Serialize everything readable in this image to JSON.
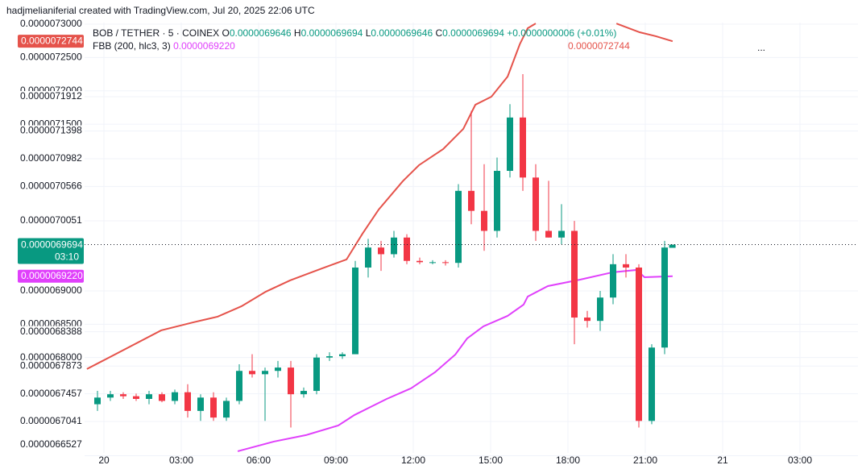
{
  "watermark": "hadjmelianiferial created with TradingView.com, Jul 20, 2025 22:06 UTC",
  "legend": {
    "symbol": "BOB / TETHER · 5 · COINEX",
    "open": {
      "label": "O",
      "value": "0.0000069646"
    },
    "high": {
      "label": "H",
      "value": "0.0000069694"
    },
    "low": {
      "label": "L",
      "value": "0.0000069646"
    },
    "close": {
      "label": "C",
      "value": "0.0000069694"
    },
    "change": "+0.0000000006 (+0.01%)",
    "indicator": "FBB (200, hlc3, 3)",
    "indicator_lower": "0.0000069220",
    "indicator_upper": "0.0000072744",
    "more": "..."
  },
  "price_tags": {
    "upper": "0.0000072744",
    "last": "0.0000069694",
    "countdown": "03:10",
    "lower": "0.0000069220"
  },
  "chart_data": {
    "type": "candlestick",
    "ylim": [
      6.657e-06,
      7.3024e-06
    ],
    "yticks": [
      {
        "value": 7.3e-06,
        "label": "0.0000073000"
      },
      {
        "value": 7.25e-06,
        "label": "0.0000072500"
      },
      {
        "value": 7.2e-06,
        "label": "0.0000072000"
      },
      {
        "value": 7.1912e-06,
        "label": "0.0000071912"
      },
      {
        "value": 7.15e-06,
        "label": "0.0000071500"
      },
      {
        "value": 7.1398e-06,
        "label": "0.0000071398"
      },
      {
        "value": 7.0982e-06,
        "label": "0.0000070982"
      },
      {
        "value": 7.0566e-06,
        "label": "0.0000070566"
      },
      {
        "value": 7.0051e-06,
        "label": "0.0000070051"
      },
      {
        "value": 6.9e-06,
        "label": "0.0000069000"
      },
      {
        "value": 6.85e-06,
        "label": "0.0000068500"
      },
      {
        "value": 6.8388e-06,
        "label": "0.0000068388"
      },
      {
        "value": 6.8e-06,
        "label": "0.0000068000"
      },
      {
        "value": 6.7873e-06,
        "label": "0.0000067873"
      },
      {
        "value": 6.7457e-06,
        "label": "0.0000067457"
      },
      {
        "value": 6.7041e-06,
        "label": "0.0000067041"
      },
      {
        "value": 6.6527e-06,
        "label": "0.0000066527"
      }
    ],
    "xlim": [
      -0.75,
      29.25
    ],
    "xticks": [
      {
        "value": 0,
        "label": "20"
      },
      {
        "value": 3,
        "label": "03:00"
      },
      {
        "value": 6,
        "label": "06:00"
      },
      {
        "value": 9,
        "label": "09:00"
      },
      {
        "value": 12,
        "label": "12:00"
      },
      {
        "value": 15,
        "label": "15:00"
      },
      {
        "value": 18,
        "label": "18:00"
      },
      {
        "value": 21,
        "label": "21:00"
      },
      {
        "value": 24,
        "label": "21"
      },
      {
        "value": 27,
        "label": "03:00"
      }
    ],
    "grid": true,
    "last_price_line": true,
    "candles": {
      "up_color": "#089981",
      "down_color": "#f23645",
      "x": [
        -0.25,
        0.25,
        0.75,
        1.25,
        1.75,
        2.25,
        2.75,
        3.25,
        3.75,
        4.25,
        4.75,
        5.25,
        5.75,
        6.25,
        6.75,
        7.25,
        7.75,
        8.25,
        8.75,
        9.25,
        9.75,
        10.25,
        10.75,
        11.25,
        11.75,
        12.25,
        12.75,
        13.25,
        13.75,
        14.25,
        14.75,
        15.25,
        15.75,
        16.25,
        16.75,
        17.25,
        17.75,
        18.25,
        18.75,
        19.25,
        19.75,
        20.25,
        20.75,
        21.25,
        21.75,
        22.05
      ],
      "open": [
        6.73e-06,
        6.74e-06,
        6.745e-06,
        6.742e-06,
        6.738e-06,
        6.745e-06,
        6.735e-06,
        6.748e-06,
        6.72e-06,
        6.74e-06,
        6.71e-06,
        6.735e-06,
        6.78e-06,
        6.775e-06,
        6.78e-06,
        6.785e-06,
        6.745e-06,
        6.75e-06,
        6.8e-06,
        6.802e-06,
        6.805e-06,
        6.935e-06,
        6.965e-06,
        6.955e-06,
        6.98e-06,
        6.945e-06,
        6.943e-06,
        6.943e-06,
        6.942e-06,
        7.05e-06,
        7.02e-06,
        6.99e-06,
        7.08e-06,
        7.16e-06,
        7.07e-06,
        6.99e-06,
        6.98e-06,
        6.99e-06,
        6.86e-06,
        6.855e-06,
        6.89e-06,
        6.94e-06,
        6.935e-06,
        6.705e-06,
        6.815e-06,
        6.9646e-06
      ],
      "high": [
        6.75e-06,
        6.75e-06,
        6.748e-06,
        6.746e-06,
        6.75e-06,
        6.748e-06,
        6.752e-06,
        6.76e-06,
        6.745e-06,
        6.748e-06,
        6.74e-06,
        6.79e-06,
        6.805e-06,
        6.785e-06,
        6.795e-06,
        6.795e-06,
        6.755e-06,
        6.805e-06,
        6.808e-06,
        6.808e-06,
        6.945e-06,
        6.978e-06,
        6.975e-06,
        6.99e-06,
        6.985e-06,
        6.95e-06,
        6.946e-06,
        6.946e-06,
        7.06e-06,
        7.17e-06,
        7.09e-06,
        7.1e-06,
        7.18e-06,
        7.225e-06,
        7.09e-06,
        7.065e-06,
        7.03e-06,
        7.005e-06,
        6.87e-06,
        6.9e-06,
        6.955e-06,
        6.955e-06,
        6.94e-06,
        6.82e-06,
        6.975e-06,
        6.9694e-06
      ],
      "low": [
        6.72e-06,
        6.735e-06,
        6.738e-06,
        6.735e-06,
        6.73e-06,
        6.733e-06,
        6.73e-06,
        6.71e-06,
        6.705e-06,
        6.705e-06,
        6.705e-06,
        6.73e-06,
        6.77e-06,
        6.705e-06,
        6.77e-06,
        6.695e-06,
        6.74e-06,
        6.745e-06,
        6.795e-06,
        6.798e-06,
        6.805e-06,
        6.92e-06,
        6.93e-06,
        6.95e-06,
        6.94e-06,
        6.94e-06,
        6.94e-06,
        6.938e-06,
        6.935e-06,
        7e-06,
        6.96e-06,
        6.98e-06,
        7.07e-06,
        7.05e-06,
        6.975e-06,
        6.98e-06,
        6.97e-06,
        6.82e-06,
        6.845e-06,
        6.84e-06,
        6.88e-06,
        6.92e-06,
        6.695e-06,
        6.7e-06,
        6.805e-06,
        6.9646e-06
      ],
      "close": [
        6.74e-06,
        6.745e-06,
        6.742e-06,
        6.738e-06,
        6.745e-06,
        6.735e-06,
        6.748e-06,
        6.72e-06,
        6.74e-06,
        6.71e-06,
        6.735e-06,
        6.78e-06,
        6.775e-06,
        6.78e-06,
        6.785e-06,
        6.745e-06,
        6.75e-06,
        6.8e-06,
        6.802e-06,
        6.805e-06,
        6.935e-06,
        6.965e-06,
        6.955e-06,
        6.98e-06,
        6.945e-06,
        6.943e-06,
        6.943e-06,
        6.942e-06,
        7.05e-06,
        7.02e-06,
        6.99e-06,
        7.08e-06,
        7.16e-06,
        7.07e-06,
        6.99e-06,
        6.98e-06,
        6.99e-06,
        6.86e-06,
        6.855e-06,
        6.89e-06,
        6.94e-06,
        6.935e-06,
        6.705e-06,
        6.815e-06,
        6.965e-06,
        6.9694e-06
      ]
    },
    "series": [
      {
        "color": "#e5534b",
        "x": [
          -0.66,
          2.22,
          3.47,
          4.41,
          5.34,
          6.28,
          7.22,
          8.47,
          9.41,
          10.03,
          10.66,
          11.59,
          12.22,
          13.16,
          13.94,
          14.41,
          15.03,
          15.66,
          16.13,
          16.44,
          16.75,
          18.5,
          19.88,
          20.78,
          21.41,
          22.06
        ],
        "values": [
          6.7828e-06,
          6.8408e-06,
          6.8529e-06,
          6.8613e-06,
          6.877e-06,
          6.8988e-06,
          6.9157e-06,
          6.9338e-06,
          6.9471e-06,
          6.9858e-06,
          7.022e-06,
          7.0644e-06,
          7.0885e-06,
          7.1127e-06,
          7.1429e-06,
          7.1792e-06,
          7.1912e-06,
          7.2214e-06,
          7.2698e-06,
          7.294e-06,
          7.301e-06,
          null,
          7.301e-06,
          7.2879e-06,
          7.2819e-06,
          7.2744e-06
        ]
      },
      {
        "color": "#e040fb",
        "x": [
          5.19,
          6.59,
          7.84,
          9.09,
          9.72,
          10.97,
          11.91,
          12.84,
          13.63,
          14.09,
          14.72,
          15.66,
          16.28,
          16.44,
          17.22,
          18.47,
          19.72,
          20.66,
          20.97,
          22.06
        ],
        "values": [
          6.6595e-06,
          6.674e-06,
          6.6837e-06,
          6.6982e-06,
          6.7139e-06,
          6.738e-06,
          6.7538e-06,
          6.7779e-06,
          6.8045e-06,
          6.8287e-06,
          6.8468e-06,
          6.8625e-06,
          6.8794e-06,
          6.8915e-06,
          6.9072e-06,
          6.9169e-06,
          6.9278e-06,
          6.9314e-06,
          6.9205e-06,
          6.922e-06
        ]
      }
    ]
  }
}
